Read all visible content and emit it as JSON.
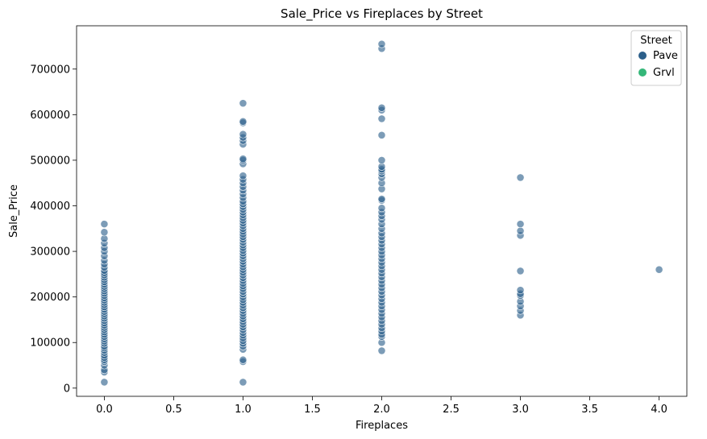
{
  "chart_data": {
    "type": "scatter",
    "title": "Sale_Price vs Fireplaces by Street",
    "xlabel": "Fireplaces",
    "ylabel": "Sale_Price",
    "xlim": [
      -0.2,
      4.2
    ],
    "ylim": [
      -18000,
      795000
    ],
    "xticks": [
      0.0,
      0.5,
      1.0,
      1.5,
      2.0,
      2.5,
      3.0,
      3.5,
      4.0
    ],
    "xtick_labels": [
      "0.0",
      "0.5",
      "1.0",
      "1.5",
      "2.0",
      "2.5",
      "3.0",
      "3.5",
      "4.0"
    ],
    "yticks": [
      0,
      100000,
      200000,
      300000,
      400000,
      500000,
      600000,
      700000
    ],
    "ytick_labels": [
      "0",
      "100000",
      "200000",
      "300000",
      "400000",
      "500000",
      "600000",
      "700000"
    ],
    "grid": false,
    "legend": {
      "title": "Street",
      "placement": "top-right"
    },
    "series": [
      {
        "name": "Pave",
        "color": "#2c5f8a",
        "points": [
          [
            0,
            13000
          ],
          [
            0,
            35000
          ],
          [
            0,
            40000
          ],
          [
            0,
            50000
          ],
          [
            0,
            58000
          ],
          [
            0,
            62000
          ],
          [
            0,
            67000
          ],
          [
            0,
            72000
          ],
          [
            0,
            78000
          ],
          [
            0,
            83000
          ],
          [
            0,
            88000
          ],
          [
            0,
            92000
          ],
          [
            0,
            98000
          ],
          [
            0,
            103000
          ],
          [
            0,
            108000
          ],
          [
            0,
            113000
          ],
          [
            0,
            118000
          ],
          [
            0,
            123000
          ],
          [
            0,
            128000
          ],
          [
            0,
            133000
          ],
          [
            0,
            138000
          ],
          [
            0,
            143000
          ],
          [
            0,
            148000
          ],
          [
            0,
            153000
          ],
          [
            0,
            158000
          ],
          [
            0,
            163000
          ],
          [
            0,
            168000
          ],
          [
            0,
            173000
          ],
          [
            0,
            178000
          ],
          [
            0,
            183000
          ],
          [
            0,
            188000
          ],
          [
            0,
            193000
          ],
          [
            0,
            198000
          ],
          [
            0,
            203000
          ],
          [
            0,
            208000
          ],
          [
            0,
            213000
          ],
          [
            0,
            218000
          ],
          [
            0,
            223000
          ],
          [
            0,
            228000
          ],
          [
            0,
            233000
          ],
          [
            0,
            238000
          ],
          [
            0,
            243000
          ],
          [
            0,
            248000
          ],
          [
            0,
            253000
          ],
          [
            0,
            258000
          ],
          [
            0,
            265000
          ],
          [
            0,
            272000
          ],
          [
            0,
            280000
          ],
          [
            0,
            290000
          ],
          [
            0,
            300000
          ],
          [
            0,
            308000
          ],
          [
            0,
            318000
          ],
          [
            0,
            328000
          ],
          [
            0,
            342000
          ],
          [
            0,
            360000
          ],
          [
            1,
            13000
          ],
          [
            1,
            58000
          ],
          [
            1,
            62000
          ],
          [
            1,
            85000
          ],
          [
            1,
            92000
          ],
          [
            1,
            98000
          ],
          [
            1,
            104000
          ],
          [
            1,
            110000
          ],
          [
            1,
            116000
          ],
          [
            1,
            122000
          ],
          [
            1,
            128000
          ],
          [
            1,
            134000
          ],
          [
            1,
            140000
          ],
          [
            1,
            146000
          ],
          [
            1,
            152000
          ],
          [
            1,
            158000
          ],
          [
            1,
            164000
          ],
          [
            1,
            170000
          ],
          [
            1,
            176000
          ],
          [
            1,
            182000
          ],
          [
            1,
            188000
          ],
          [
            1,
            194000
          ],
          [
            1,
            200000
          ],
          [
            1,
            206000
          ],
          [
            1,
            212000
          ],
          [
            1,
            218000
          ],
          [
            1,
            224000
          ],
          [
            1,
            230000
          ],
          [
            1,
            236000
          ],
          [
            1,
            242000
          ],
          [
            1,
            248000
          ],
          [
            1,
            254000
          ],
          [
            1,
            260000
          ],
          [
            1,
            266000
          ],
          [
            1,
            272000
          ],
          [
            1,
            278000
          ],
          [
            1,
            284000
          ],
          [
            1,
            290000
          ],
          [
            1,
            296000
          ],
          [
            1,
            302000
          ],
          [
            1,
            308000
          ],
          [
            1,
            314000
          ],
          [
            1,
            320000
          ],
          [
            1,
            326000
          ],
          [
            1,
            332000
          ],
          [
            1,
            338000
          ],
          [
            1,
            344000
          ],
          [
            1,
            350000
          ],
          [
            1,
            356000
          ],
          [
            1,
            362000
          ],
          [
            1,
            368000
          ],
          [
            1,
            374000
          ],
          [
            1,
            380000
          ],
          [
            1,
            386000
          ],
          [
            1,
            392000
          ],
          [
            1,
            398000
          ],
          [
            1,
            404000
          ],
          [
            1,
            410000
          ],
          [
            1,
            418000
          ],
          [
            1,
            426000
          ],
          [
            1,
            434000
          ],
          [
            1,
            442000
          ],
          [
            1,
            450000
          ],
          [
            1,
            458000
          ],
          [
            1,
            466000
          ],
          [
            1,
            492000
          ],
          [
            1,
            500000
          ],
          [
            1,
            503000
          ],
          [
            1,
            535000
          ],
          [
            1,
            543000
          ],
          [
            1,
            550000
          ],
          [
            1,
            557000
          ],
          [
            1,
            582000
          ],
          [
            1,
            585000
          ],
          [
            1,
            625000
          ],
          [
            2,
            82000
          ],
          [
            2,
            100000
          ],
          [
            2,
            113000
          ],
          [
            2,
            118000
          ],
          [
            2,
            125000
          ],
          [
            2,
            132000
          ],
          [
            2,
            140000
          ],
          [
            2,
            148000
          ],
          [
            2,
            156000
          ],
          [
            2,
            164000
          ],
          [
            2,
            172000
          ],
          [
            2,
            180000
          ],
          [
            2,
            188000
          ],
          [
            2,
            196000
          ],
          [
            2,
            204000
          ],
          [
            2,
            212000
          ],
          [
            2,
            220000
          ],
          [
            2,
            228000
          ],
          [
            2,
            236000
          ],
          [
            2,
            244000
          ],
          [
            2,
            252000
          ],
          [
            2,
            260000
          ],
          [
            2,
            268000
          ],
          [
            2,
            276000
          ],
          [
            2,
            284000
          ],
          [
            2,
            292000
          ],
          [
            2,
            300000
          ],
          [
            2,
            308000
          ],
          [
            2,
            316000
          ],
          [
            2,
            324000
          ],
          [
            2,
            332000
          ],
          [
            2,
            340000
          ],
          [
            2,
            350000
          ],
          [
            2,
            360000
          ],
          [
            2,
            370000
          ],
          [
            2,
            378000
          ],
          [
            2,
            386000
          ],
          [
            2,
            395000
          ],
          [
            2,
            412000
          ],
          [
            2,
            415000
          ],
          [
            2,
            437000
          ],
          [
            2,
            450000
          ],
          [
            2,
            462000
          ],
          [
            2,
            470000
          ],
          [
            2,
            476000
          ],
          [
            2,
            480000
          ],
          [
            2,
            486000
          ],
          [
            2,
            500000
          ],
          [
            2,
            555000
          ],
          [
            2,
            591000
          ],
          [
            2,
            610000
          ],
          [
            2,
            615000
          ],
          [
            2,
            745000
          ],
          [
            2,
            755000
          ],
          [
            3,
            160000
          ],
          [
            3,
            170000
          ],
          [
            3,
            180000
          ],
          [
            3,
            190000
          ],
          [
            3,
            203000
          ],
          [
            3,
            207000
          ],
          [
            3,
            215000
          ],
          [
            3,
            257000
          ],
          [
            3,
            335000
          ],
          [
            3,
            345000
          ],
          [
            3,
            360000
          ],
          [
            3,
            462000
          ],
          [
            4,
            260000
          ]
        ]
      },
      {
        "name": "Grvl",
        "color": "#35b779",
        "points": []
      }
    ]
  }
}
